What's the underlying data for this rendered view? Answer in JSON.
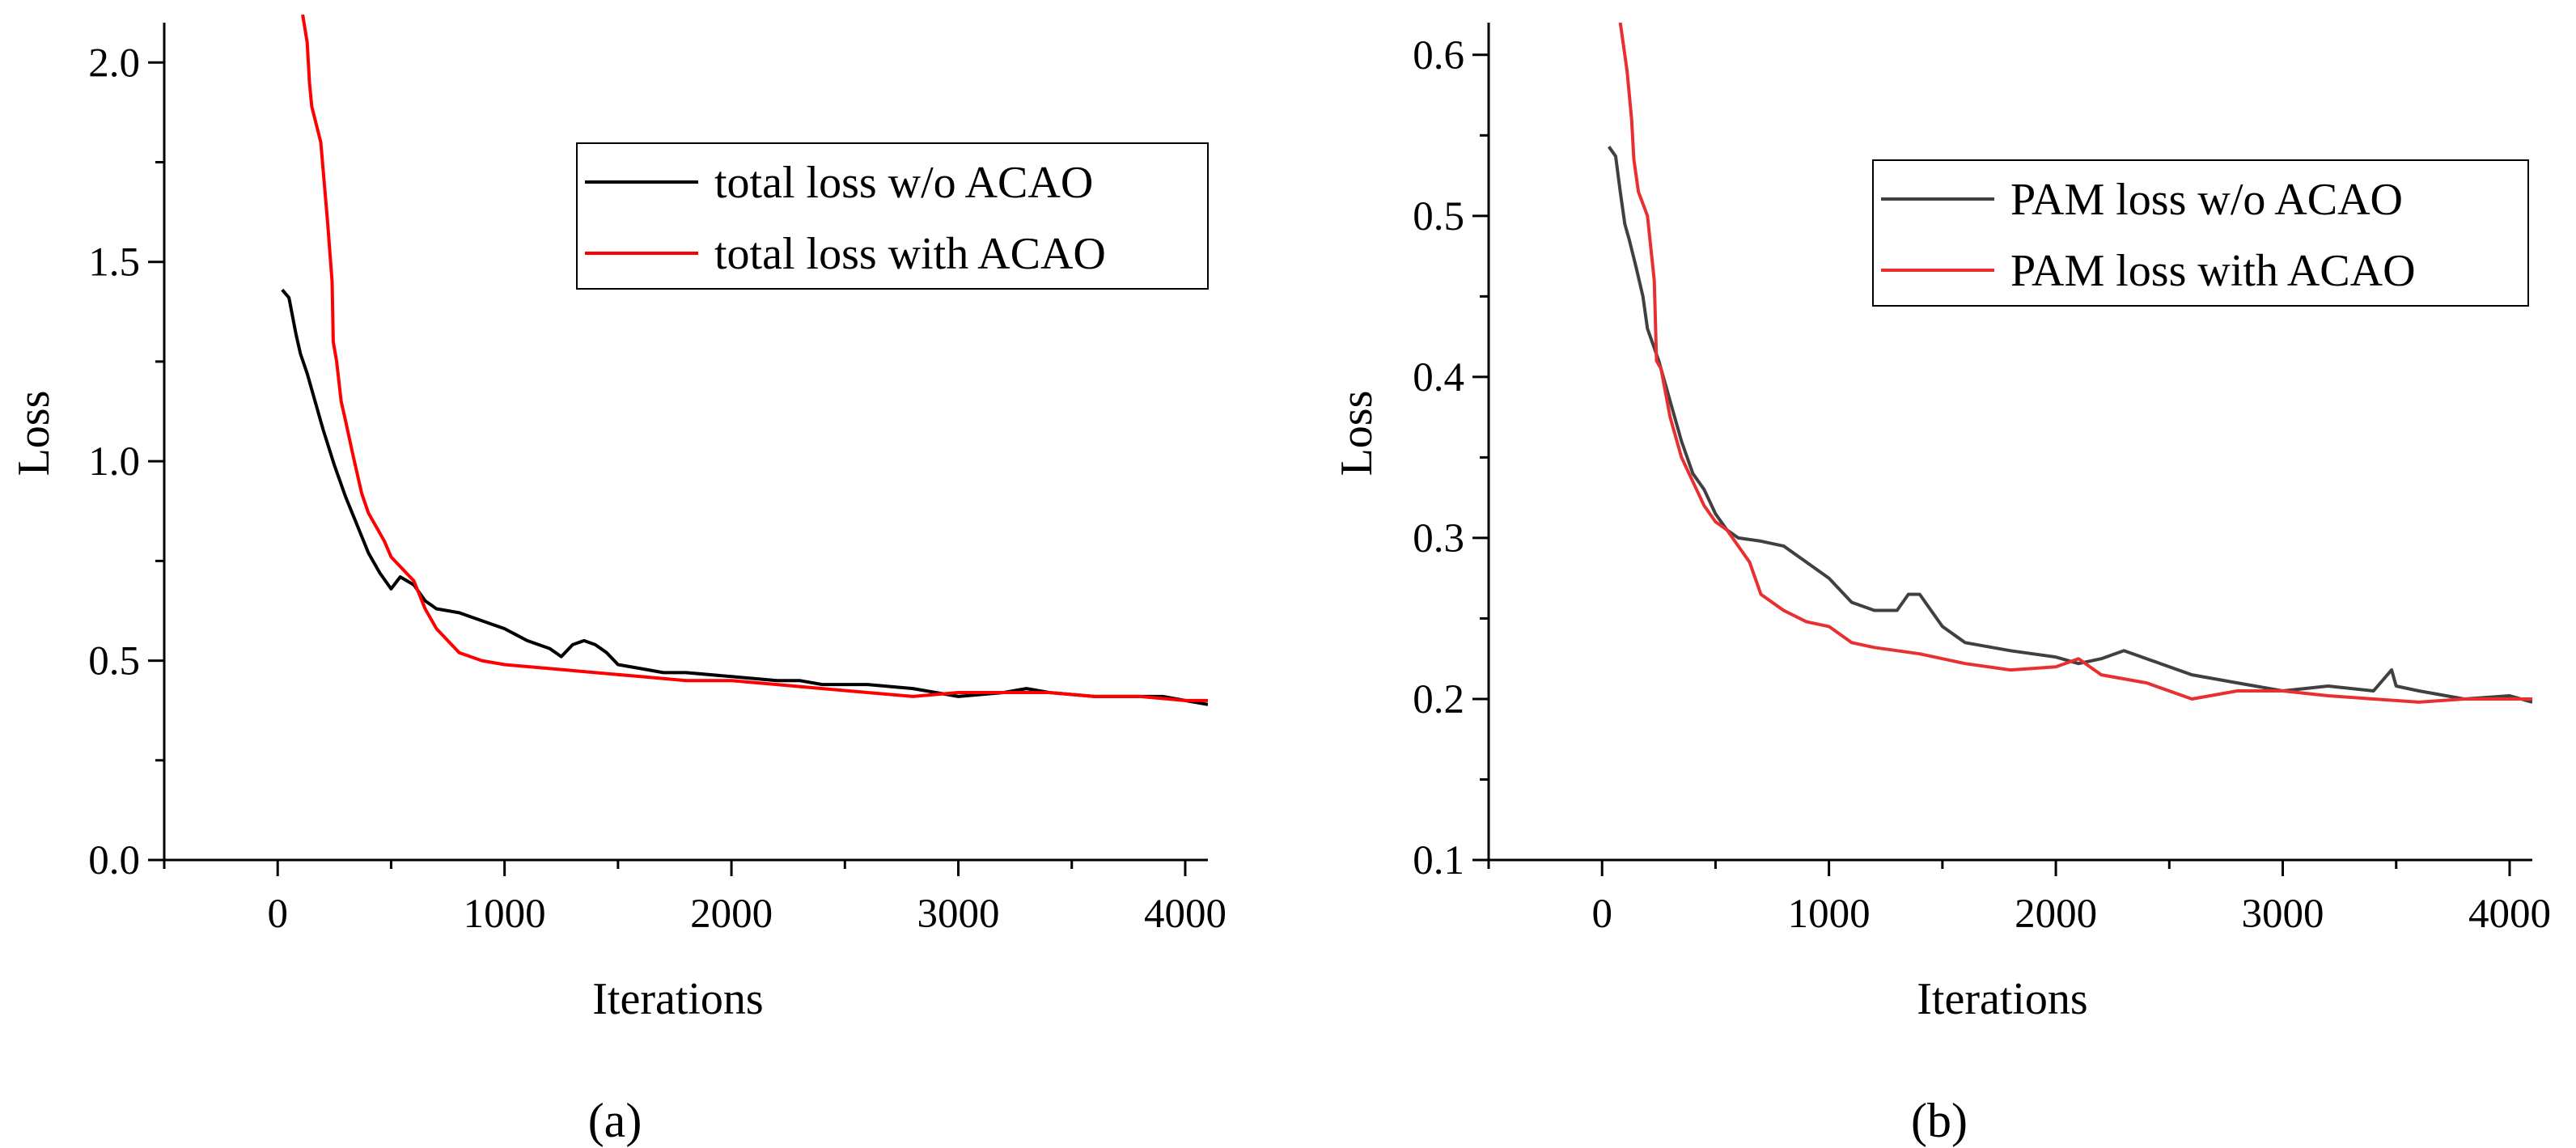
{
  "chart_data": [
    {
      "type": "line",
      "panel_label": "(a)",
      "xlabel": "Iterations",
      "ylabel": "Loss",
      "xlim": [
        -500,
        4100
      ],
      "ylim": [
        0.0,
        2.1
      ],
      "xticks": [
        0,
        1000,
        2000,
        3000,
        4000
      ],
      "xtick_labels": [
        "0",
        "1000",
        "2000",
        "3000",
        "4000"
      ],
      "yticks": [
        0.0,
        0.5,
        1.0,
        1.5,
        2.0
      ],
      "ytick_labels": [
        "0.0",
        "0.5",
        "1.0",
        "1.5",
        "2.0"
      ],
      "grid": false,
      "legend": "top-right",
      "series": [
        {
          "name": "total loss w/o ACAO",
          "color": "#000000",
          "x": [
            20,
            50,
            80,
            100,
            130,
            160,
            200,
            250,
            300,
            350,
            400,
            450,
            500,
            540,
            570,
            600,
            650,
            700,
            800,
            900,
            1000,
            1100,
            1200,
            1250,
            1300,
            1350,
            1400,
            1450,
            1500,
            1600,
            1700,
            1800,
            2000,
            2200,
            2300,
            2400,
            2600,
            2800,
            2900,
            3000,
            3200,
            3300,
            3400,
            3600,
            3700,
            3800,
            3900,
            4000,
            4100
          ],
          "y": [
            1.43,
            1.41,
            1.32,
            1.27,
            1.22,
            1.16,
            1.08,
            0.99,
            0.91,
            0.84,
            0.77,
            0.72,
            0.68,
            0.71,
            0.7,
            0.69,
            0.65,
            0.63,
            0.62,
            0.6,
            0.58,
            0.55,
            0.53,
            0.51,
            0.54,
            0.55,
            0.54,
            0.52,
            0.49,
            0.48,
            0.47,
            0.47,
            0.46,
            0.45,
            0.45,
            0.44,
            0.44,
            0.43,
            0.42,
            0.41,
            0.42,
            0.43,
            0.42,
            0.41,
            0.41,
            0.41,
            0.41,
            0.4,
            0.39
          ]
        },
        {
          "name": "total loss with ACAO",
          "color": "#ff0000",
          "x": [
            110,
            130,
            140,
            150,
            190,
            220,
            240,
            245,
            260,
            280,
            300,
            330,
            370,
            400,
            430,
            470,
            500,
            550,
            600,
            650,
            700,
            750,
            800,
            900,
            1000,
            1200,
            1400,
            1600,
            1800,
            2000,
            2200,
            2400,
            2600,
            2800,
            3000,
            3200,
            3400,
            3600,
            3800,
            4000,
            4100
          ],
          "y": [
            2.12,
            2.05,
            1.95,
            1.89,
            1.8,
            1.6,
            1.45,
            1.3,
            1.25,
            1.15,
            1.1,
            1.02,
            0.92,
            0.87,
            0.84,
            0.8,
            0.76,
            0.73,
            0.7,
            0.63,
            0.58,
            0.55,
            0.52,
            0.5,
            0.49,
            0.48,
            0.47,
            0.46,
            0.45,
            0.45,
            0.44,
            0.43,
            0.42,
            0.41,
            0.42,
            0.42,
            0.42,
            0.41,
            0.41,
            0.4,
            0.4
          ]
        }
      ]
    },
    {
      "type": "line",
      "panel_label": "(b)",
      "xlabel": "Iterations",
      "ylabel": "Loss",
      "xlim": [
        -500,
        4100
      ],
      "ylim": [
        0.1,
        0.62
      ],
      "xticks": [
        0,
        1000,
        2000,
        3000,
        4000
      ],
      "xtick_labels": [
        "0",
        "1000",
        "2000",
        "3000",
        "4000"
      ],
      "yticks": [
        0.1,
        0.2,
        0.3,
        0.4,
        0.5,
        0.6
      ],
      "ytick_labels": [
        "0.1",
        "0.2",
        "0.3",
        "0.4",
        "0.5",
        "0.6"
      ],
      "grid": false,
      "legend": "top-right",
      "series": [
        {
          "name": "PAM loss w/o ACAO",
          "color": "#404040",
          "x": [
            30,
            60,
            80,
            100,
            120,
            150,
            180,
            200,
            250,
            300,
            350,
            400,
            450,
            500,
            550,
            600,
            700,
            800,
            900,
            1000,
            1100,
            1200,
            1300,
            1350,
            1400,
            1450,
            1500,
            1600,
            1800,
            2000,
            2100,
            2200,
            2300,
            2400,
            2600,
            2800,
            3000,
            3200,
            3400,
            3480,
            3500,
            3600,
            3800,
            4000,
            4100
          ],
          "y": [
            0.543,
            0.537,
            0.515,
            0.495,
            0.485,
            0.468,
            0.45,
            0.43,
            0.41,
            0.385,
            0.36,
            0.34,
            0.33,
            0.315,
            0.305,
            0.3,
            0.298,
            0.295,
            0.285,
            0.275,
            0.26,
            0.255,
            0.255,
            0.265,
            0.265,
            0.255,
            0.245,
            0.235,
            0.23,
            0.226,
            0.222,
            0.225,
            0.23,
            0.225,
            0.215,
            0.21,
            0.205,
            0.208,
            0.205,
            0.218,
            0.208,
            0.205,
            0.2,
            0.202,
            0.198
          ]
        },
        {
          "name": "PAM loss with ACAO",
          "color": "#e83030",
          "x": [
            80,
            110,
            130,
            140,
            160,
            200,
            230,
            240,
            260,
            280,
            300,
            350,
            400,
            450,
            500,
            550,
            600,
            650,
            700,
            800,
            900,
            1000,
            1100,
            1200,
            1400,
            1600,
            1800,
            2000,
            2100,
            2200,
            2400,
            2600,
            2800,
            3000,
            3200,
            3400,
            3600,
            3800,
            4000,
            4100
          ],
          "y": [
            0.62,
            0.59,
            0.56,
            0.535,
            0.515,
            0.5,
            0.46,
            0.41,
            0.405,
            0.39,
            0.375,
            0.35,
            0.335,
            0.32,
            0.31,
            0.305,
            0.295,
            0.285,
            0.265,
            0.255,
            0.248,
            0.245,
            0.235,
            0.232,
            0.228,
            0.222,
            0.218,
            0.22,
            0.225,
            0.215,
            0.21,
            0.2,
            0.205,
            0.205,
            0.202,
            0.2,
            0.198,
            0.2,
            0.2,
            0.2
          ]
        }
      ]
    }
  ]
}
